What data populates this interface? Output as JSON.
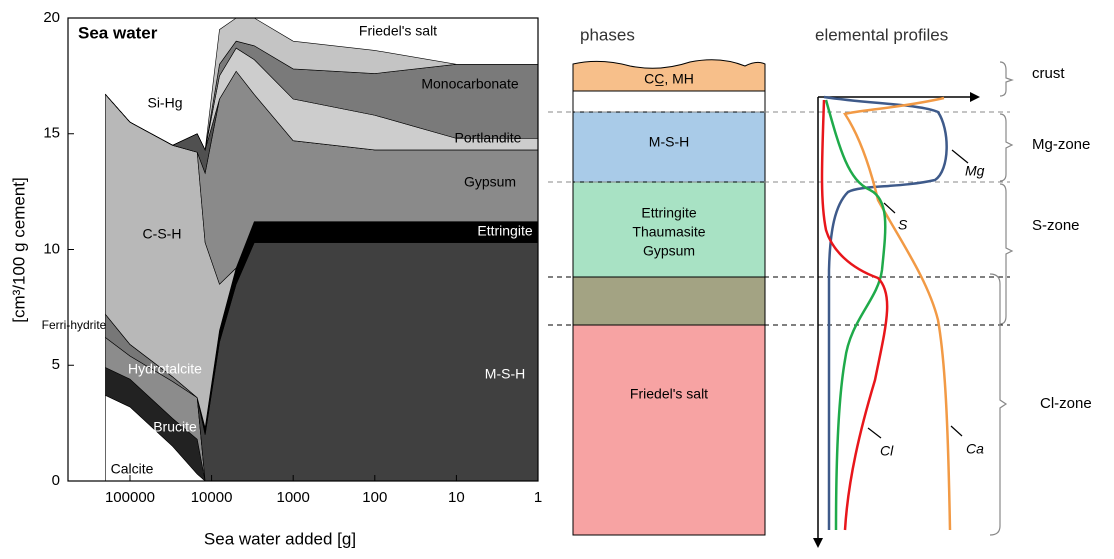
{
  "chart_data": {
    "type": "area",
    "stacked": true,
    "log_x": true,
    "title": "Sea water",
    "x_label": "Sea water added [g]",
    "y_label": "[cm³/100 g cement]",
    "x": [
      200000,
      100000,
      30000,
      15000,
      12000,
      8000,
      5000,
      3000,
      1000,
      100,
      10,
      1
    ],
    "xlim": [
      575000,
      1
    ],
    "xticks": [
      100000,
      10000,
      1000,
      100,
      10,
      1
    ],
    "ylim": [
      0,
      20
    ],
    "yticks": [
      0,
      5,
      10,
      15,
      20
    ],
    "series": [
      {
        "name": "Calcite",
        "color": "#ffffff",
        "values": [
          3.7,
          3.2,
          1.5,
          0.3,
          0,
          0,
          0,
          0,
          0,
          0,
          0,
          0
        ]
      },
      {
        "name": "Brucite",
        "color": "#222222",
        "values": [
          1.2,
          1.2,
          1.2,
          1.5,
          0,
          0,
          0,
          0,
          0,
          0,
          0,
          0
        ]
      },
      {
        "name": "Hydrotalcite",
        "color": "#8c8c8c",
        "values": [
          1.3,
          1.0,
          1.6,
          1.8,
          0,
          0,
          0,
          0,
          0,
          0,
          0,
          0
        ]
      },
      {
        "name": "Ferri-hydrite",
        "color": "#777777",
        "values": [
          1.0,
          0.5,
          0.2,
          0,
          0,
          0,
          0,
          0,
          0,
          0,
          0,
          0
        ]
      },
      {
        "name": "C-S-H",
        "color": "#404040",
        "values": [
          0,
          0,
          0,
          0,
          2,
          6,
          8.5,
          10.3,
          10.3,
          10.3,
          10.3,
          10.3
        ]
      },
      {
        "name": "Si-Hg",
        "color": "#000000",
        "values": [
          0,
          0,
          0,
          0,
          0.3,
          0.5,
          0.7,
          0.9,
          0.9,
          0.9,
          0.9,
          0.9
        ]
      },
      {
        "name": "M-S-H",
        "color": "#b8b8b8",
        "values": [
          9.5,
          9.6,
          10.0,
          10.6,
          8,
          2,
          0,
          0,
          0,
          0,
          0,
          0
        ]
      },
      {
        "name": "Ettringite",
        "color": "#8a8a8a",
        "values": [
          0,
          0,
          0,
          0,
          3,
          8,
          8.5,
          5.5,
          3.5,
          3.1,
          3.1,
          3.1
        ]
      },
      {
        "name": "Gypsum",
        "color": "#505050",
        "values": [
          0,
          0,
          0,
          0.8,
          1,
          0,
          0,
          0,
          0,
          0,
          0,
          0
        ]
      },
      {
        "name": "Portlandite",
        "color": "#cdcdcd",
        "values": [
          0,
          0,
          0,
          0,
          0,
          1,
          1,
          1.5,
          1.8,
          1.5,
          0.5,
          0.5
        ]
      },
      {
        "name": "Monocarbonate",
        "color": "#7a7a7a",
        "values": [
          0,
          0,
          0,
          0,
          0,
          0.5,
          0.3,
          0.6,
          1.3,
          1.8,
          3.2,
          3.2
        ]
      },
      {
        "name": "Friedel's salt",
        "color": "#c4c4c4",
        "values": [
          0,
          0,
          0,
          0,
          0,
          1.5,
          1,
          1.2,
          1.2,
          1.0,
          0,
          0
        ]
      }
    ]
  },
  "diagram": {
    "phases_title": "phases",
    "profiles_title": "elemental profiles",
    "phases": {
      "crust": "CC̲, MH",
      "msh": "M-S-H",
      "sulfate": [
        "Ettringite",
        "Thaumasite",
        "Gypsum"
      ],
      "chloride": "Friedel's salt"
    },
    "zones": [
      "crust",
      "Mg-zone",
      "S-zone",
      "Cl-zone"
    ],
    "profiles": [
      "Mg",
      "S",
      "Cl",
      "Ca"
    ]
  }
}
